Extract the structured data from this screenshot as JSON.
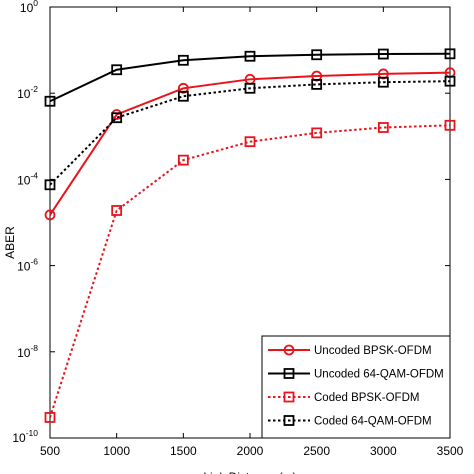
{
  "chart_data": {
    "type": "line",
    "title": "",
    "xlabel": "Link Distance (m)",
    "ylabel": "ABER",
    "x": [
      500,
      1000,
      1500,
      2000,
      2500,
      3000,
      3500
    ],
    "xlim": [
      500,
      3500
    ],
    "ylim": [
      1e-10,
      1
    ],
    "yscale": "log",
    "x_ticks": [
      "500",
      "1000",
      "1500",
      "2000",
      "2500",
      "3000",
      "3500"
    ],
    "y_ticks": [
      {
        "base": "10",
        "exp": "-10",
        "value": 1e-10
      },
      {
        "base": "10",
        "exp": "-8",
        "value": 1e-08
      },
      {
        "base": "10",
        "exp": "-6",
        "value": 1e-06
      },
      {
        "base": "10",
        "exp": "-4",
        "value": 0.0001
      },
      {
        "base": "10",
        "exp": "-2",
        "value": 0.01
      },
      {
        "base": "10",
        "exp": "0",
        "value": 1
      }
    ],
    "grid": false,
    "legend_position": "bottom-right",
    "series": [
      {
        "name": "Uncoded BPSK-OFDM",
        "color": "#e8141c",
        "dashed": false,
        "marker": "circle",
        "values": [
          1.5e-05,
          0.0032,
          0.013,
          0.021,
          0.025,
          0.028,
          0.03
        ]
      },
      {
        "name": "Uncoded 64-QAM-OFDM",
        "color": "#000000",
        "dashed": false,
        "marker": "square",
        "values": [
          0.0065,
          0.035,
          0.058,
          0.072,
          0.078,
          0.081,
          0.082
        ]
      },
      {
        "name": "Coded BPSK-OFDM",
        "color": "#e8141c",
        "dashed": true,
        "marker": "square",
        "values": [
          3e-10,
          1.9e-05,
          0.00028,
          0.00075,
          0.0012,
          0.0016,
          0.0018
        ]
      },
      {
        "name": "Coded 64-QAM-OFDM",
        "color": "#000000",
        "dashed": true,
        "marker": "square",
        "values": [
          7.5e-05,
          0.0027,
          0.0085,
          0.013,
          0.016,
          0.018,
          0.019
        ]
      }
    ]
  }
}
